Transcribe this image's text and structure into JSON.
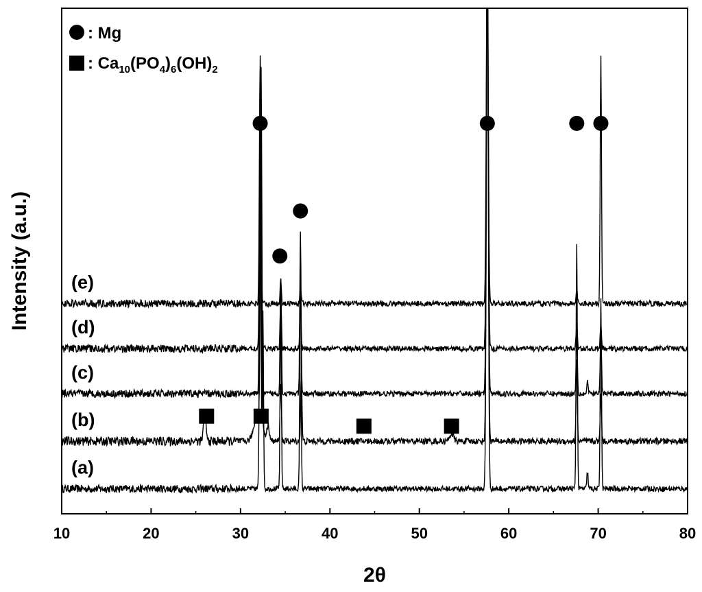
{
  "chart_data": {
    "type": "line",
    "xlabel": "2θ",
    "ylabel": "Intensity (a.u.)",
    "xlim": [
      10,
      80
    ],
    "xticks": [
      10,
      20,
      30,
      40,
      50,
      60,
      70,
      80
    ],
    "grid": false,
    "legend_position": "top-left",
    "legend": [
      {
        "marker": "circle",
        "label": ": Mg",
        "color": "#000000"
      },
      {
        "marker": "square",
        "label_parts": [
          ": Ca",
          "10",
          "(PO",
          "4",
          ")",
          "6",
          "(OH)",
          "2"
        ],
        "color": "#000000"
      }
    ],
    "series": [
      {
        "name": "(a)",
        "baseline": 0.5,
        "noise": 0.12,
        "peaks": [
          [
            32.2,
            6.0,
            0.12
          ],
          [
            32.5,
            3.5,
            0.1
          ],
          [
            34.5,
            3.6,
            0.1
          ],
          [
            36.7,
            4.6,
            0.1
          ],
          [
            57.6,
            11.0,
            0.15
          ],
          [
            67.6,
            4.9,
            0.1
          ],
          [
            68.8,
            0.35,
            0.1
          ],
          [
            70.3,
            3.8,
            0.1
          ]
        ]
      },
      {
        "name": "(b)",
        "baseline": 1.45,
        "noise": 0.14,
        "peaks": [
          [
            26.0,
            0.5,
            0.2
          ],
          [
            32.0,
            0.6,
            0.6
          ],
          [
            32.3,
            7.0,
            0.12
          ],
          [
            33.1,
            0.3,
            0.2
          ],
          [
            34.5,
            1.2,
            0.1
          ],
          [
            36.8,
            1.4,
            0.1
          ],
          [
            53.6,
            0.15,
            0.3
          ],
          [
            57.6,
            9.5,
            0.15
          ],
          [
            67.6,
            1.6,
            0.1
          ],
          [
            70.3,
            1.0,
            0.1
          ]
        ]
      },
      {
        "name": "(c)",
        "baseline": 2.4,
        "noise": 0.12,
        "peaks": [
          [
            32.2,
            5.0,
            0.12
          ],
          [
            34.5,
            2.3,
            0.1
          ],
          [
            36.7,
            3.2,
            0.1
          ],
          [
            57.6,
            9.0,
            0.15
          ],
          [
            67.6,
            1.2,
            0.1
          ],
          [
            68.8,
            0.25,
            0.1
          ],
          [
            70.3,
            1.3,
            0.1
          ]
        ]
      },
      {
        "name": "(d)",
        "baseline": 3.3,
        "noise": 0.12,
        "peaks": [
          [
            32.2,
            4.5,
            0.12
          ],
          [
            34.5,
            1.0,
            0.1
          ],
          [
            36.7,
            1.0,
            0.1
          ],
          [
            57.6,
            8.0,
            0.15
          ],
          [
            67.6,
            0.5,
            0.1
          ],
          [
            70.3,
            0.5,
            0.1
          ]
        ]
      },
      {
        "name": "(e)",
        "baseline": 4.2,
        "noise": 0.12,
        "peaks": [
          [
            32.2,
            5.0,
            0.12
          ],
          [
            34.5,
            0.5,
            0.1
          ],
          [
            36.7,
            0.4,
            0.1
          ],
          [
            57.6,
            7.5,
            0.15
          ],
          [
            67.6,
            0.3,
            0.1
          ],
          [
            70.3,
            5.0,
            0.1
          ]
        ]
      }
    ],
    "markers": [
      {
        "type": "circle",
        "x": 32.2,
        "y": 7.8
      },
      {
        "type": "circle",
        "x": 34.4,
        "y": 5.15
      },
      {
        "type": "circle",
        "x": 36.7,
        "y": 6.05
      },
      {
        "type": "circle",
        "x": 57.6,
        "y": 7.8
      },
      {
        "type": "circle",
        "x": 67.6,
        "y": 7.8
      },
      {
        "type": "circle",
        "x": 70.3,
        "y": 7.8
      },
      {
        "type": "square",
        "x": 26.2,
        "y": 1.95
      },
      {
        "type": "square",
        "x": 32.3,
        "y": 1.95
      },
      {
        "type": "square",
        "x": 43.8,
        "y": 1.75
      },
      {
        "type": "square",
        "x": 53.6,
        "y": 1.75
      }
    ],
    "ylim": [
      0,
      10.1
    ]
  }
}
